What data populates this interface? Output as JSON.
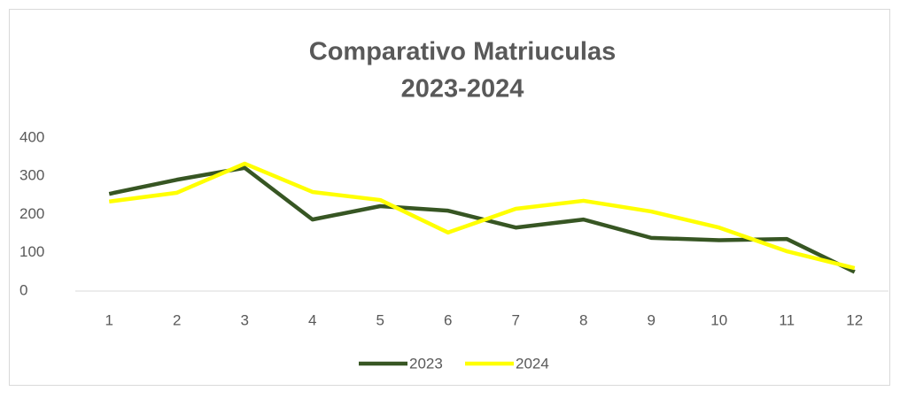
{
  "chart_data": {
    "type": "line",
    "title": [
      "Comparativo Matriuculas",
      "2023-2024"
    ],
    "categories": [
      "1",
      "2",
      "3",
      "4",
      "5",
      "6",
      "7",
      "8",
      "9",
      "10",
      "11",
      "12"
    ],
    "series": [
      {
        "name": "2023",
        "color": "#375623",
        "values": [
          254,
          291,
          322,
          187,
          222,
          210,
          166,
          187,
          139,
          133,
          136,
          50
        ]
      },
      {
        "name": "2024",
        "color": "#ffff00",
        "values": [
          234,
          257,
          333,
          259,
          238,
          153,
          215,
          236,
          208,
          166,
          104,
          60
        ]
      }
    ],
    "ylim": [
      0,
      400
    ],
    "yticks": [
      0,
      100,
      200,
      300,
      400
    ],
    "grid": false,
    "legend": "bottom"
  }
}
